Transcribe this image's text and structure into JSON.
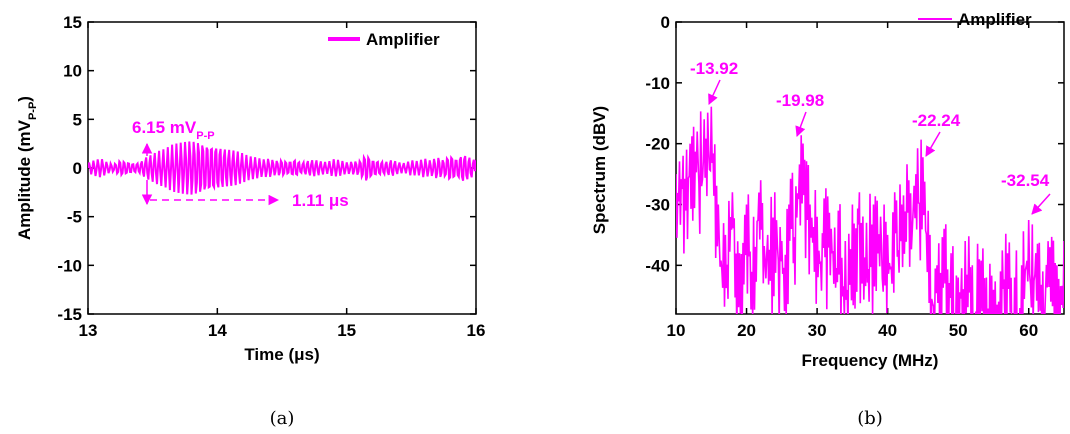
{
  "accent": "#ff00ff",
  "chart_data": [
    {
      "type": "line",
      "panel_label": "(a)",
      "xlabel": "Time (μs)",
      "ylabel": {
        "main": "Amplitude (mV",
        "sub": "P-P",
        "close": ")"
      },
      "xlim": [
        13,
        16
      ],
      "ylim": [
        -15,
        15
      ],
      "xticks": [
        "13",
        "14",
        "15",
        "16"
      ],
      "yticks": [
        "-15",
        "-10",
        "-5",
        "0",
        "5",
        "10",
        "15"
      ],
      "legend": "Amplifier",
      "legend_position": "top-right",
      "series": [
        {
          "name": "Amplifier",
          "color": "#ff00ff",
          "x": [
            13.0,
            13.05,
            13.1,
            13.15,
            13.2,
            13.25,
            13.3,
            13.35,
            13.4,
            13.45,
            13.5,
            13.55,
            13.6,
            13.65,
            13.7,
            13.75,
            13.8,
            13.85,
            13.9,
            13.95,
            14.0,
            14.05,
            14.1,
            14.15,
            14.2,
            14.25,
            14.3,
            14.35,
            14.4,
            14.45,
            14.5,
            14.55,
            14.6,
            14.65,
            14.7,
            14.75,
            14.8,
            14.85,
            14.9,
            14.95,
            15.0,
            15.05,
            15.1,
            15.15,
            15.2,
            15.25,
            15.3,
            15.35,
            15.4,
            15.45,
            15.5,
            15.55,
            15.6,
            15.65,
            15.7,
            15.75,
            15.8,
            15.85,
            15.9,
            15.95,
            16.0
          ],
          "y": [
            0.5,
            -0.8,
            1.0,
            -0.6,
            0.4,
            -0.9,
            0.7,
            -0.5,
            0.6,
            -1.2,
            1.5,
            -1.8,
            2.0,
            -2.4,
            2.6,
            -2.8,
            3.0,
            -3.0,
            2.8,
            -2.7,
            2.5,
            -2.2,
            2.0,
            -1.8,
            1.5,
            -1.2,
            1.1,
            -0.9,
            1.0,
            -0.8,
            0.9,
            -0.7,
            1.0,
            -0.6,
            0.8,
            -0.9,
            0.7,
            -0.6,
            0.9,
            -0.8,
            0.6,
            -0.7,
            0.8,
            -1.6,
            0.9,
            -0.8,
            0.7,
            -0.9,
            0.6,
            -0.5,
            0.8,
            -0.7,
            1.0,
            -0.8,
            1.2,
            -0.9,
            1.5,
            -1.0,
            1.6,
            -1.2,
            0.8
          ]
        }
      ],
      "annotations": [
        {
          "text": "6.15 mV",
          "sub": "P-P"
        },
        {
          "text": "1.11 μs"
        }
      ]
    },
    {
      "type": "line",
      "panel_label": "(b)",
      "xlabel": "Frequency (MHz)",
      "ylabel": "Spectrum (dBV)",
      "xlim": [
        10,
        65
      ],
      "ylim": [
        -48,
        0
      ],
      "xticks": [
        "10",
        "20",
        "30",
        "40",
        "50",
        "60"
      ],
      "yticks": [
        "0",
        "-10",
        "-20",
        "-30",
        "-40"
      ],
      "legend": "Amplifier",
      "legend_position": "top-right",
      "series": [
        {
          "name": "Amplifier",
          "color": "#ff00ff",
          "x": [
            10,
            11,
            12,
            13,
            14,
            15,
            16,
            17,
            18,
            19,
            20,
            21,
            22,
            23,
            24,
            25,
            26,
            27,
            28,
            29,
            30,
            31,
            32,
            33,
            34,
            35,
            36,
            37,
            38,
            39,
            40,
            41,
            42,
            43,
            44,
            45,
            46,
            47,
            48,
            49,
            50,
            51,
            52,
            53,
            54,
            55,
            56,
            57,
            58,
            59,
            60,
            61,
            62,
            63,
            64,
            65
          ],
          "y": [
            -25,
            -22,
            -20,
            -18,
            -16,
            -13.92,
            -30,
            -35,
            -28,
            -38,
            -30,
            -32,
            -26,
            -35,
            -28,
            -36,
            -30,
            -27,
            -19.98,
            -30,
            -32,
            -29,
            -34,
            -31,
            -36,
            -30,
            -28,
            -33,
            -30,
            -32,
            -35,
            -28,
            -30,
            -26,
            -25,
            -22.24,
            -35,
            -40,
            -34,
            -38,
            -42,
            -36,
            -40,
            -39,
            -42,
            -44,
            -41,
            -38,
            -42,
            -40,
            -32.54,
            -38,
            -41,
            -37,
            -40,
            -36
          ]
        }
      ],
      "annotations": [
        {
          "text": "-13.92"
        },
        {
          "text": "-19.98"
        },
        {
          "text": "-22.24"
        },
        {
          "text": "-32.54"
        }
      ]
    }
  ]
}
